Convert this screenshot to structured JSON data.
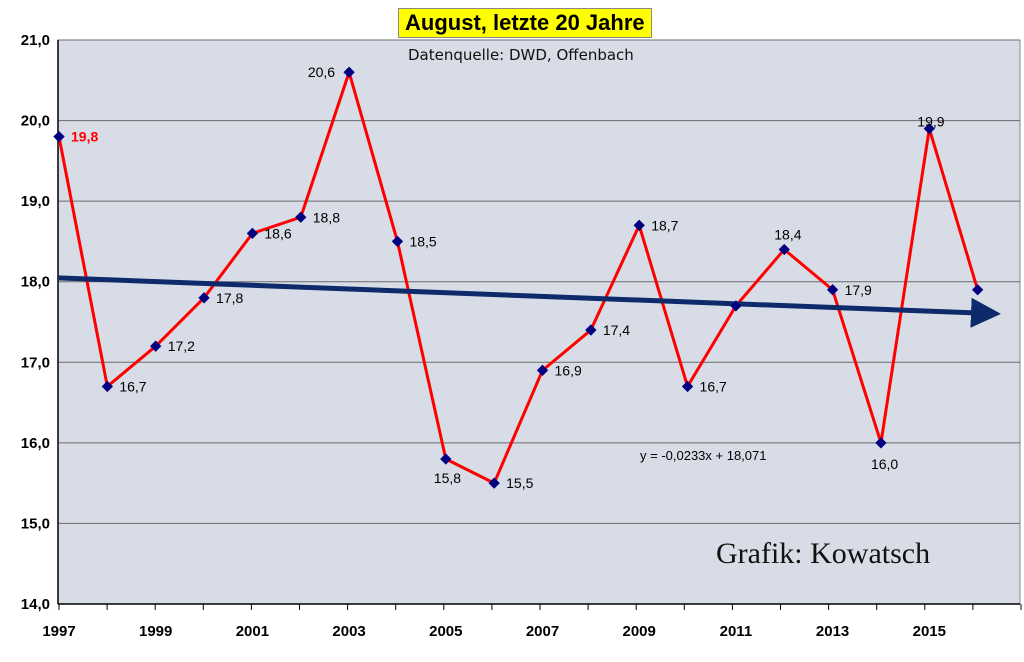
{
  "chart_data": {
    "type": "line",
    "title": "August, letzte 20 Jahre",
    "subtitle": "Datenquelle: DWD, Offenbach",
    "credit": "Grafik: Kowatsch",
    "x": [
      1997,
      1998,
      1999,
      2000,
      2001,
      2002,
      2003,
      2004,
      2005,
      2006,
      2007,
      2008,
      2009,
      2010,
      2011,
      2012,
      2013,
      2014,
      2015,
      2016
    ],
    "series": [
      {
        "values": [
          19.8,
          16.7,
          17.2,
          17.8,
          18.6,
          18.8,
          20.6,
          18.5,
          15.8,
          15.5,
          16.9,
          17.4,
          18.7,
          16.7,
          17.7,
          18.4,
          17.9,
          16.0,
          19.9,
          17.9
        ],
        "point_labels": [
          "19,8",
          "16,7",
          "17,2",
          "17,8",
          "18,6",
          "18,8",
          "20,6",
          "18,5",
          "15,8",
          "15,5",
          "16,9",
          "17,4",
          "18,7",
          "16,7",
          "",
          "18,4",
          "17,9",
          "16,0",
          "19,9",
          ""
        ],
        "color": "#ff0000",
        "marker_color": "#000080"
      }
    ],
    "trendline": {
      "equation": "y = -0,0233x + 18,071",
      "slope": -0.0233,
      "intercept": 18.071,
      "color": "#0d2a6b"
    },
    "first_label_color": "#ff0000",
    "y_ticks": [
      "14,0",
      "15,0",
      "16,0",
      "17,0",
      "18,0",
      "19,0",
      "20,0",
      "21,0"
    ],
    "x_tick_labels": [
      "1997",
      "1999",
      "2001",
      "2003",
      "2005",
      "2007",
      "2009",
      "2011",
      "2013",
      "2015"
    ],
    "ylim": [
      14.0,
      21.0
    ],
    "grid": true,
    "plot_background": "#d8dce6"
  }
}
